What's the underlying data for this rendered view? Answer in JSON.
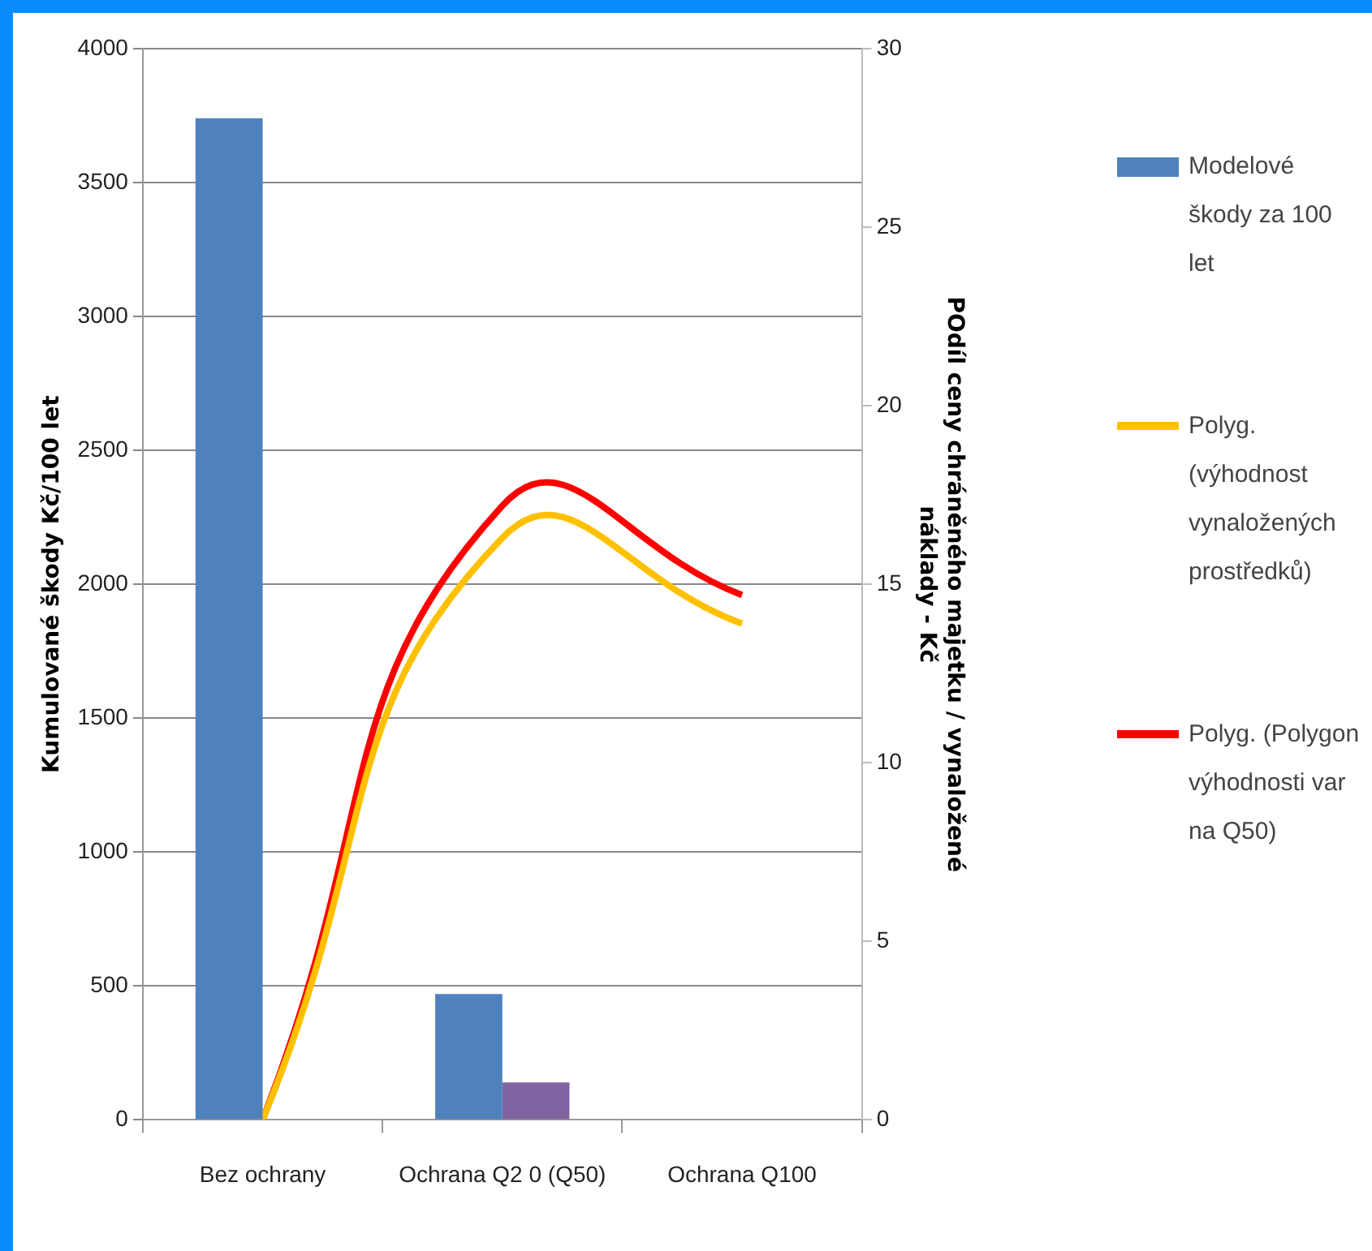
{
  "chart_data": {
    "type": "bar",
    "categories": [
      "Bez ochrany",
      "Ochrana Q2 0 (Q50)",
      "Ochrana Q100"
    ],
    "ylabel": "Kumulované škody Kč/100 let",
    "y2label": "POdíl ceny chráněného majetku / vynaložené náklady - Kč",
    "series": [
      {
        "name": "Modelové škody za 100 let",
        "color": "#4f81bd",
        "values": [
          3740,
          470,
          null
        ]
      },
      {
        "color": "#8064a2",
        "values": [
          null,
          140,
          null
        ]
      },
      {
        "name": "Polyg. (výhodnost vynaložených prostředků)",
        "type": "line",
        "axis": "y2",
        "color": "#ffc000",
        "values": [
          0,
          16.3,
          13.9
        ]
      },
      {
        "name": "Polyg. (Polygon výhodnosti var na Q50)",
        "type": "line",
        "axis": "y2",
        "color": "#ff0000",
        "values": [
          0,
          17.2,
          14.7
        ]
      }
    ],
    "ylim": [
      0,
      4000
    ],
    "yticks": [
      0,
      500,
      1000,
      1500,
      2000,
      2500,
      3000,
      3500,
      4000
    ],
    "y2lim": [
      0,
      30
    ],
    "y2ticks": [
      0,
      5,
      10,
      15,
      20,
      25,
      30
    ],
    "grid": "y",
    "legend": "right",
    "marker": "none",
    "line_style": "solid"
  }
}
